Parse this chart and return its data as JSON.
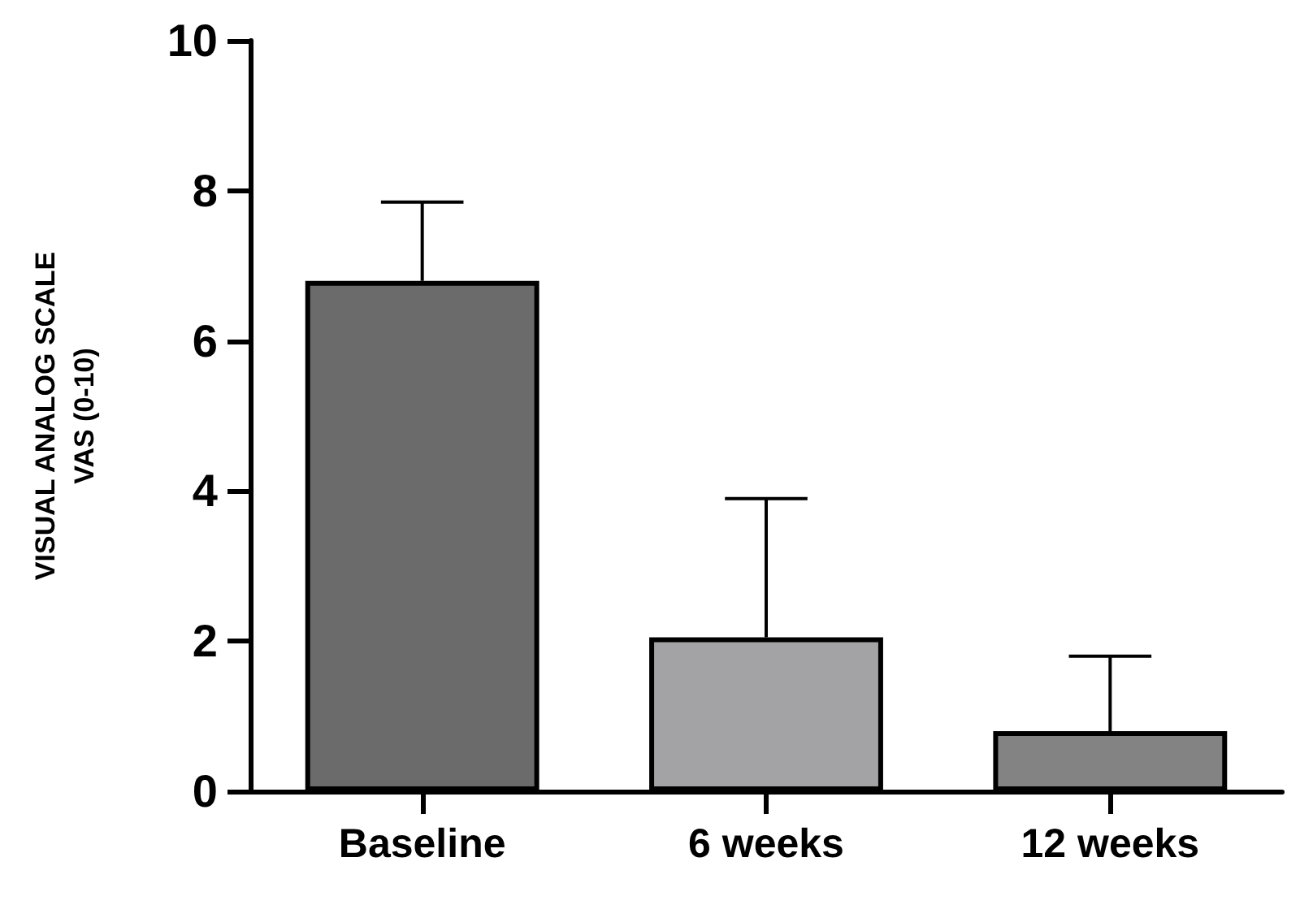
{
  "chart_data": {
    "type": "bar",
    "ylabel": "VISUAL ANALOG SCALE\nVAS (0-10)",
    "categories": [
      "Baseline",
      "6 weeks",
      "12 weeks"
    ],
    "values": [
      6.8,
      2.05,
      0.8
    ],
    "colors": [
      "#6b6b6b",
      "#a3a3a6",
      "#838383"
    ],
    "errors": [
      [
        6.8,
        7.85
      ],
      [
        2.05,
        3.9
      ],
      [
        0.8,
        1.8
      ]
    ],
    "ylim": [
      0,
      10
    ],
    "yticks": [
      0,
      2,
      4,
      6,
      8,
      10
    ],
    "grid": false
  }
}
